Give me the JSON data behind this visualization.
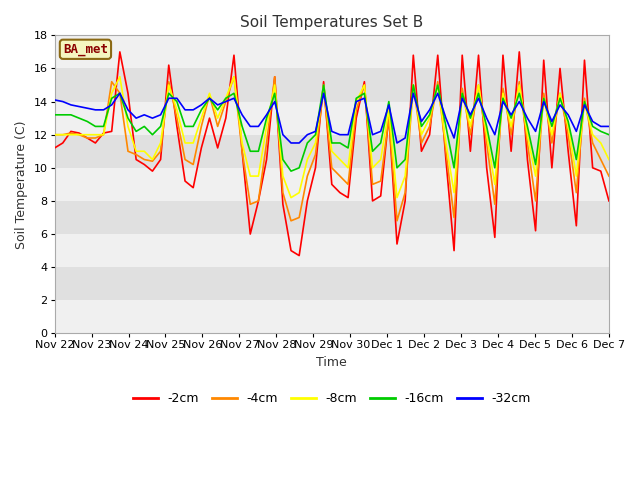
{
  "title": "Soil Temperatures Set B",
  "xlabel": "Time",
  "ylabel": "Soil Temperature (C)",
  "annotation": "BA_met",
  "ylim": [
    0,
    18
  ],
  "xlim": [
    0,
    360
  ],
  "background_color": "#ffffff",
  "plot_bg_light": "#e8e8e8",
  "plot_bg_dark": "#d0d0d0",
  "colors": {
    "-2cm": "#ff0000",
    "-4cm": "#ff8800",
    "-8cm": "#ffff00",
    "-16cm": "#00cc00",
    "-32cm": "#0000ff"
  },
  "x_tick_labels": [
    "Nov 22",
    "Nov 23",
    "Nov 24",
    "Nov 25",
    "Nov 26",
    "Nov 27",
    "Nov 28",
    "Nov 29",
    "Nov 30",
    "Dec 1",
    "Dec 2",
    "Dec 3",
    "Dec 4",
    "Dec 5",
    "Dec 6",
    "Dec 7"
  ],
  "x_tick_positions": [
    0,
    24,
    48,
    72,
    96,
    120,
    144,
    168,
    192,
    216,
    240,
    264,
    288,
    312,
    336,
    360
  ],
  "y_ticks": [
    0,
    2,
    4,
    6,
    8,
    10,
    12,
    14,
    16,
    18
  ],
  "data": {
    "-2cm": [
      11.2,
      11.5,
      12.2,
      12.1,
      11.8,
      11.5,
      12.1,
      12.2,
      17.0,
      14.5,
      10.5,
      10.2,
      9.8,
      10.5,
      16.2,
      12.5,
      9.2,
      8.8,
      11.2,
      13.0,
      11.2,
      13.0,
      16.8,
      11.0,
      6.0,
      8.0,
      10.5,
      15.5,
      7.8,
      5.0,
      4.7,
      8.0,
      10.0,
      15.2,
      9.0,
      8.5,
      8.2,
      13.0,
      15.2,
      8.0,
      8.3,
      13.1,
      5.4,
      8.0,
      16.8,
      11.0,
      12.0,
      16.8,
      10.5,
      5.0,
      16.8,
      11.0,
      16.8,
      10.0,
      5.8,
      16.8,
      11.0,
      17.0,
      10.5,
      6.2,
      16.5,
      10.0,
      16.0,
      11.0,
      6.5,
      16.5,
      10.0,
      9.8,
      8.0
    ],
    "-4cm": [
      12.0,
      12.0,
      12.1,
      12.0,
      11.8,
      11.8,
      12.0,
      15.2,
      14.5,
      11.0,
      10.8,
      10.5,
      10.4,
      11.0,
      15.2,
      13.0,
      10.5,
      10.2,
      12.5,
      14.4,
      12.5,
      14.0,
      15.5,
      11.0,
      7.8,
      8.0,
      11.5,
      15.5,
      8.5,
      6.8,
      7.0,
      9.5,
      10.8,
      14.8,
      10.0,
      9.5,
      9.0,
      13.5,
      15.0,
      9.0,
      9.2,
      13.0,
      6.8,
      8.5,
      15.0,
      11.5,
      12.5,
      15.2,
      11.0,
      7.0,
      14.8,
      12.0,
      15.0,
      11.5,
      7.8,
      14.8,
      12.0,
      15.2,
      11.5,
      8.0,
      14.5,
      11.5,
      14.5,
      12.0,
      8.5,
      14.2,
      11.5,
      10.5,
      9.5
    ],
    "-8cm": [
      12.0,
      12.0,
      12.0,
      12.0,
      12.0,
      12.0,
      12.0,
      14.5,
      15.5,
      12.5,
      11.0,
      11.0,
      10.5,
      11.5,
      15.0,
      13.5,
      11.5,
      11.5,
      13.0,
      14.5,
      13.0,
      14.2,
      15.5,
      11.5,
      9.5,
      9.5,
      12.5,
      15.0,
      9.5,
      8.2,
      8.5,
      10.5,
      11.5,
      15.0,
      11.0,
      10.5,
      10.0,
      14.0,
      15.0,
      10.0,
      10.5,
      13.5,
      8.2,
      9.5,
      15.0,
      12.0,
      13.0,
      15.0,
      11.5,
      8.5,
      14.5,
      12.5,
      15.0,
      12.0,
      9.0,
      14.5,
      12.5,
      15.0,
      12.0,
      9.5,
      14.2,
      12.0,
      14.5,
      12.5,
      9.5,
      14.0,
      12.0,
      11.5,
      10.5
    ],
    "-16cm": [
      13.2,
      13.2,
      13.2,
      13.0,
      12.8,
      12.5,
      12.5,
      14.2,
      14.5,
      13.0,
      12.2,
      12.5,
      12.0,
      12.5,
      14.5,
      14.0,
      12.5,
      12.5,
      13.5,
      14.2,
      13.5,
      14.2,
      14.5,
      12.5,
      11.0,
      11.0,
      13.0,
      14.5,
      10.5,
      9.8,
      10.0,
      11.5,
      12.0,
      15.0,
      11.5,
      11.5,
      11.2,
      14.2,
      14.5,
      11.0,
      11.5,
      14.0,
      10.0,
      10.5,
      15.0,
      12.5,
      13.2,
      15.0,
      12.5,
      10.0,
      14.5,
      13.0,
      14.5,
      12.5,
      10.0,
      14.2,
      13.0,
      14.5,
      12.5,
      10.2,
      14.2,
      12.5,
      14.2,
      12.8,
      10.5,
      14.0,
      12.5,
      12.2,
      12.0
    ],
    "-32cm": [
      14.1,
      14.0,
      13.8,
      13.7,
      13.6,
      13.5,
      13.5,
      13.8,
      14.5,
      13.5,
      13.0,
      13.2,
      13.0,
      13.2,
      14.2,
      14.2,
      13.5,
      13.5,
      13.8,
      14.2,
      13.8,
      14.0,
      14.2,
      13.2,
      12.5,
      12.5,
      13.2,
      14.0,
      12.0,
      11.5,
      11.5,
      12.0,
      12.2,
      14.5,
      12.2,
      12.0,
      12.0,
      14.0,
      14.2,
      12.0,
      12.2,
      13.8,
      11.5,
      11.8,
      14.5,
      12.8,
      13.5,
      14.5,
      13.0,
      11.8,
      14.2,
      13.2,
      14.2,
      13.0,
      12.0,
      14.0,
      13.2,
      14.0,
      13.0,
      12.2,
      14.0,
      12.8,
      13.8,
      13.2,
      12.2,
      13.8,
      12.8,
      12.5,
      12.5
    ]
  }
}
